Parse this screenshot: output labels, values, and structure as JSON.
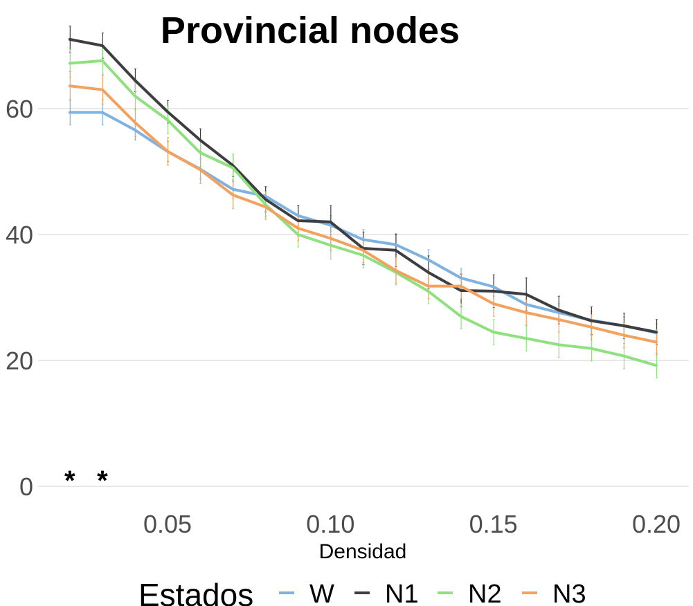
{
  "chart_data": {
    "type": "line",
    "title": "Provincial nodes",
    "xlabel": "Densidad",
    "ylabel": "",
    "xlim": [
      0.015,
      0.205
    ],
    "ylim": [
      -2,
      75
    ],
    "x_ticks": [
      0.05,
      0.1,
      0.15,
      0.2
    ],
    "x_tick_labels": [
      "0.05",
      "0.10",
      "0.15",
      "0.20"
    ],
    "y_ticks": [
      0,
      20,
      40,
      60
    ],
    "y_tick_labels": [
      "0",
      "20",
      "40",
      "60"
    ],
    "grid": "horizontal",
    "legend": {
      "title": "Estados",
      "placement": "bottom"
    },
    "x": [
      0.02,
      0.03,
      0.04,
      0.05,
      0.06,
      0.07,
      0.08,
      0.09,
      0.1,
      0.11,
      0.12,
      0.13,
      0.14,
      0.15,
      0.16,
      0.17,
      0.18,
      0.19,
      0.2
    ],
    "series": [
      {
        "name": "W",
        "color": "#7eb2e0",
        "values": [
          59.4,
          59.4,
          56.6,
          53.2,
          50.4,
          47.2,
          46.1,
          43.0,
          41.5,
          39.2,
          38.4,
          36.0,
          33.1,
          31.7,
          28.9,
          27.6,
          26.4,
          25.5,
          24.4
        ],
        "errors": [
          2.0,
          2.0,
          1.6,
          1.6,
          1.6,
          1.5,
          1.5,
          1.6,
          1.5,
          1.6,
          1.6,
          1.6,
          1.5,
          1.5,
          1.5,
          1.4,
          1.4,
          1.4,
          1.4
        ]
      },
      {
        "name": "N1",
        "color": "#3d3d42",
        "values": [
          71.0,
          70.0,
          64.5,
          59.5,
          55.0,
          51.0,
          45.6,
          42.2,
          42.0,
          37.8,
          37.5,
          34.0,
          31.1,
          31.0,
          30.5,
          28.0,
          26.3,
          25.5,
          24.5
        ],
        "errors": [
          2.1,
          2.0,
          1.8,
          1.8,
          1.8,
          1.8,
          2.0,
          2.4,
          2.6,
          2.6,
          2.6,
          2.6,
          2.6,
          2.6,
          2.6,
          2.2,
          2.2,
          2.0,
          2.0
        ]
      },
      {
        "name": "N2",
        "color": "#8fe07e",
        "values": [
          67.2,
          67.6,
          62.0,
          58.2,
          53.0,
          50.6,
          44.8,
          40.0,
          38.3,
          36.7,
          34.0,
          31.0,
          27.0,
          24.5,
          23.5,
          22.5,
          21.9,
          20.7,
          19.2
        ],
        "errors": [
          2.2,
          2.2,
          2.2,
          2.2,
          2.2,
          2.2,
          2.0,
          2.0,
          2.2,
          2.0,
          2.0,
          2.0,
          2.0,
          2.0,
          2.0,
          2.0,
          2.0,
          2.0,
          2.0
        ]
      },
      {
        "name": "N3",
        "color": "#f2a15e",
        "values": [
          63.6,
          63.0,
          57.8,
          53.2,
          50.3,
          46.3,
          44.4,
          41.0,
          39.4,
          37.5,
          34.3,
          31.8,
          31.8,
          29.0,
          27.6,
          26.5,
          25.3,
          24.0,
          22.9
        ],
        "errors": [
          2.3,
          2.3,
          2.2,
          2.2,
          2.2,
          2.2,
          2.0,
          2.0,
          2.0,
          2.0,
          2.0,
          2.0,
          2.0,
          2.0,
          2.0,
          2.0,
          2.0,
          2.0,
          2.0
        ]
      }
    ],
    "annotations": [
      {
        "text": "*",
        "x": 0.02,
        "y": 1.2
      },
      {
        "text": "*",
        "x": 0.03,
        "y": 1.2
      }
    ]
  }
}
